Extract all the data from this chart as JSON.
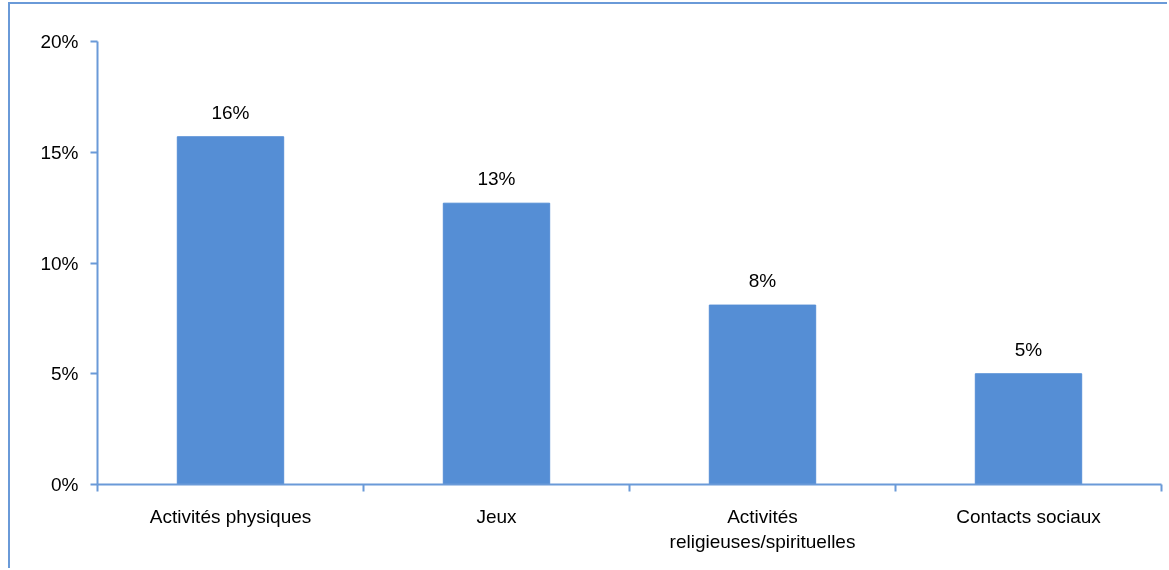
{
  "chart_data": {
    "type": "bar",
    "categories": [
      "Activités physiques",
      "Jeux",
      "Activités religieuses/spirituelles",
      "Contacts sociaux"
    ],
    "values": [
      15.7,
      12.7,
      8.1,
      5.0
    ],
    "value_labels": [
      "16%",
      "13%",
      "8%",
      "5%"
    ],
    "color": "#558ed5",
    "ylim": [
      0,
      20
    ],
    "yticks": [
      {
        "value": 0,
        "label": "0%"
      },
      {
        "value": 5,
        "label": "5%"
      },
      {
        "value": 10,
        "label": "10%"
      },
      {
        "value": 15,
        "label": "15%"
      },
      {
        "value": 20,
        "label": "20%"
      }
    ]
  }
}
